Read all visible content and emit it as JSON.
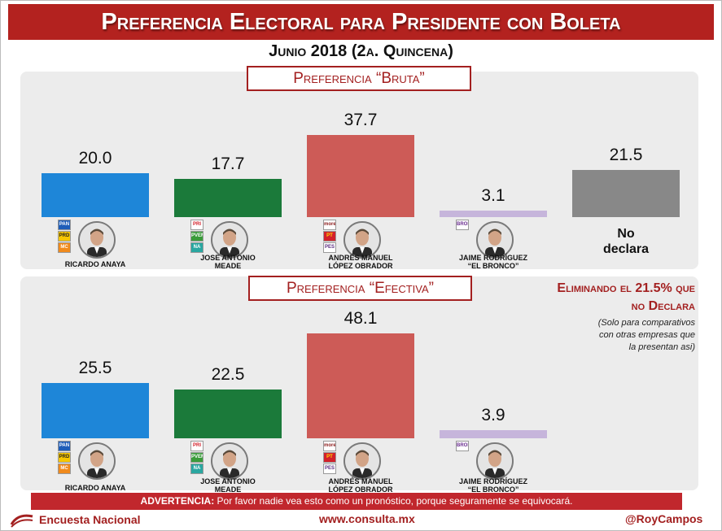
{
  "title": "Preferencia Electoral para Presidente con Boleta",
  "subtitle": "Junio 2018 (2a. Quincena)",
  "colors": {
    "accent": "#a32020",
    "anaya": "#1e86d8",
    "meade": "#1b7a3a",
    "amlo": "#cd5b57",
    "bronco": "#c6b5db",
    "no_declara": "#888888"
  },
  "chart_data": [
    {
      "type": "bar",
      "title": "Preferencia “Bruta”",
      "categories": [
        "RICARDO ANAYA",
        "JOSE ANTONIO MEADE",
        "ANDRÉS MANUEL LÓPEZ OBRADOR",
        "JAIME RODRÍGUEZ “EL BRONCO”",
        "No declara"
      ],
      "values": [
        20.0,
        17.7,
        37.7,
        3.1,
        21.5
      ],
      "value_labels": [
        "20.0",
        "17.7",
        "37.7",
        "3.1",
        "21.5"
      ],
      "ylim": [
        0,
        37.7
      ]
    },
    {
      "type": "bar",
      "title": "Preferencia “Efectiva”",
      "categories": [
        "RICARDO ANAYA",
        "JOSE ANTONIO MEADE",
        "ANDRÉS MANUEL LÓPEZ OBRADOR",
        "JAIME RODRÍGUEZ “EL BRONCO”"
      ],
      "values": [
        25.5,
        22.5,
        48.1,
        3.9
      ],
      "value_labels": [
        "25.5",
        "22.5",
        "48.1",
        "3.9"
      ],
      "ylim": [
        0,
        48.1
      ]
    }
  ],
  "candidates": [
    {
      "name_line1": "RICARDO ANAYA",
      "name_line2": "",
      "party_logos": [
        "PAN",
        "PRD",
        "MC"
      ]
    },
    {
      "name_line1": "JOSE ANTONIO",
      "name_line2": "MEADE",
      "party_logos": [
        "PRI",
        "PVEM",
        "NA"
      ]
    },
    {
      "name_line1": "ANDRÉS MANUEL",
      "name_line2": "LÓPEZ OBRADOR",
      "party_logos": [
        "morena",
        "PT",
        "PES"
      ]
    },
    {
      "name_line1": "JAIME RODRÍGUEZ",
      "name_line2": "“EL BRONCO”",
      "party_logos": [
        "BRONCO"
      ]
    }
  ],
  "no_declara": {
    "line1": "No",
    "line2": "declara"
  },
  "elimination_note": {
    "line1": "Eliminando el 21.5% que",
    "line2": "no Declara"
  },
  "paren_note": {
    "line1": "(Solo para comparativos",
    "line2": "con otras empresas que",
    "line3": "la presentan asi)"
  },
  "warning": {
    "label": "ADVERTENCIA:",
    "text": " Por favor nadie vea esto como un pronóstico, porque seguramente se equivocará."
  },
  "footer": {
    "left": "Encuesta Nacional",
    "center": "www.consulta.mx",
    "right": "@RoyCampos"
  }
}
